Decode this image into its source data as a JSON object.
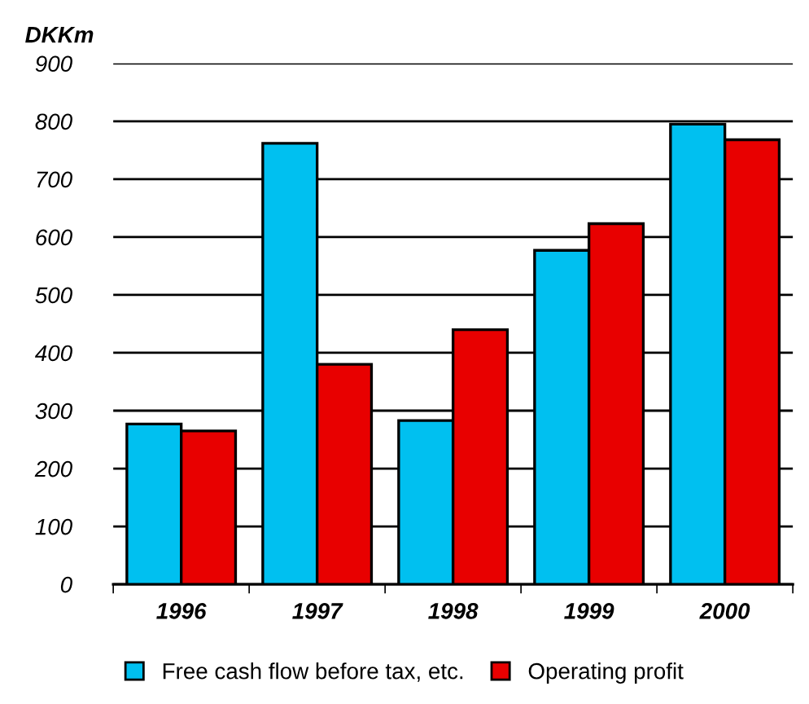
{
  "chart_data": {
    "type": "bar",
    "ylabel": "DKKm",
    "categories": [
      "1996",
      "1997",
      "1998",
      "1999",
      "2000"
    ],
    "series": [
      {
        "name": "Free cash flow before tax, etc.",
        "color": "#00c0f0",
        "values": [
          277,
          762,
          283,
          577,
          795
        ]
      },
      {
        "name": "Operating profit",
        "color": "#e80000",
        "values": [
          265,
          380,
          440,
          623,
          768
        ]
      }
    ],
    "ylim": [
      0,
      900
    ],
    "yticks": [
      0,
      100,
      200,
      300,
      400,
      500,
      600,
      700,
      800,
      900
    ],
    "grid": "y",
    "legend": "bottom"
  }
}
